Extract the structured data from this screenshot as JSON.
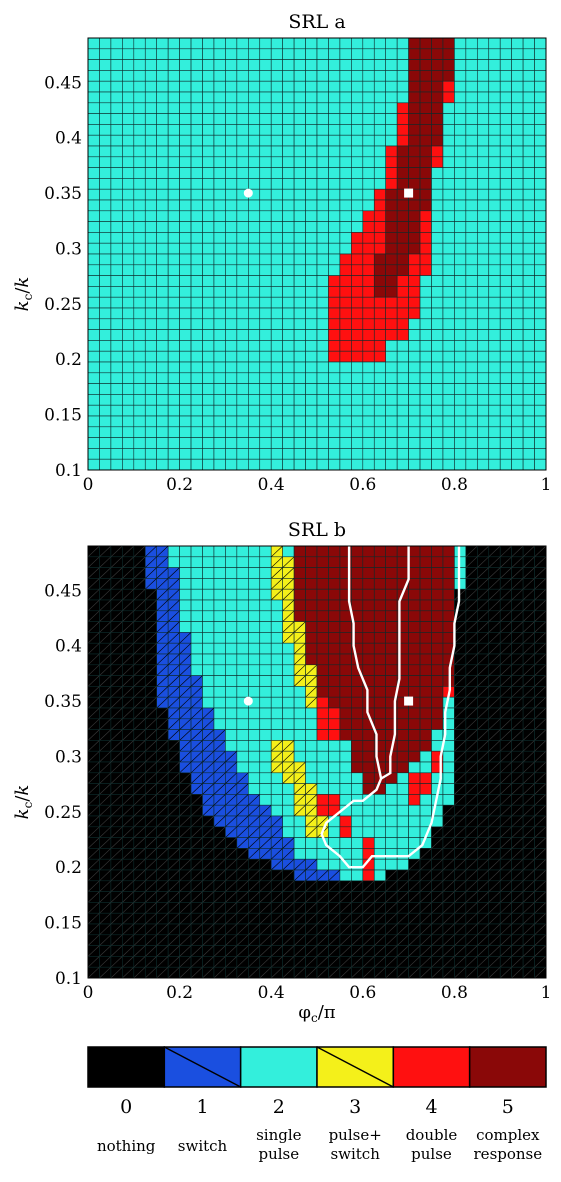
{
  "colors": {
    "0": "#000000",
    "1": "#1a4fe0",
    "2": "#33efdc",
    "3": "#f4f01a",
    "4": "#ff1010",
    "5": "#8a0808",
    "grid_dark": "#0d2b2b",
    "marker": "#ffffff"
  },
  "chart_data": [
    {
      "type": "heatmap",
      "title": "SRL a",
      "xlabel": "",
      "ylabel": "k_c/k",
      "xlim": [
        0,
        1
      ],
      "ylim": [
        0.1,
        0.49
      ],
      "xticks": [
        "0",
        "0.2",
        "0.4",
        "0.6",
        "0.8",
        "1"
      ],
      "yticks": [
        "0.1",
        "0.15",
        "0.2",
        "0.25",
        "0.3",
        "0.35",
        "0.4",
        "0.45"
      ],
      "grid_cols": 40,
      "grid_rows": 40,
      "default_class": 2,
      "regions": [
        {
          "class": 4,
          "ranges": [
            [
              0.205,
              0.53,
              0.66
            ],
            [
              0.225,
              0.52,
              0.7
            ],
            [
              0.245,
              0.52,
              0.72
            ],
            [
              0.265,
              0.53,
              0.73
            ],
            [
              0.285,
              0.55,
              0.74
            ],
            [
              0.305,
              0.57,
              0.75
            ],
            [
              0.325,
              0.6,
              0.75
            ],
            [
              0.345,
              0.62,
              0.76
            ],
            [
              0.365,
              0.64,
              0.76
            ],
            [
              0.385,
              0.66,
              0.77
            ],
            [
              0.405,
              0.67,
              0.78
            ],
            [
              0.425,
              0.68,
              0.78
            ],
            [
              0.445,
              0.69,
              0.79
            ],
            [
              0.465,
              0.69,
              0.8
            ],
            [
              0.485,
              0.69,
              0.8
            ]
          ]
        },
        {
          "class": 5,
          "ranges": [
            [
              0.265,
              0.62,
              0.68
            ],
            [
              0.285,
              0.63,
              0.7
            ],
            [
              0.305,
              0.64,
              0.72
            ],
            [
              0.325,
              0.65,
              0.73
            ],
            [
              0.345,
              0.66,
              0.74
            ],
            [
              0.365,
              0.67,
              0.75
            ],
            [
              0.385,
              0.68,
              0.76
            ],
            [
              0.405,
              0.69,
              0.77
            ],
            [
              0.425,
              0.69,
              0.77
            ],
            [
              0.445,
              0.7,
              0.78
            ],
            [
              0.465,
              0.7,
              0.79
            ],
            [
              0.485,
              0.7,
              0.79
            ]
          ]
        }
      ],
      "markers": [
        {
          "shape": "circle",
          "x": 0.35,
          "y": 0.35
        },
        {
          "shape": "square",
          "x": 0.7,
          "y": 0.35
        }
      ]
    },
    {
      "type": "heatmap",
      "title": "SRL b",
      "xlabel": "φ_c/π",
      "ylabel": "k_c/k",
      "xlim": [
        0,
        1
      ],
      "ylim": [
        0.1,
        0.49
      ],
      "xticks": [
        "0",
        "0.2",
        "0.4",
        "0.6",
        "0.8",
        "1"
      ],
      "yticks": [
        "0.1",
        "0.15",
        "0.2",
        "0.25",
        "0.3",
        "0.35",
        "0.4",
        "0.45"
      ],
      "grid_cols": 40,
      "grid_rows": 40,
      "default_class": 0,
      "regions": [
        {
          "class": 1,
          "ranges": [
            [
              0.195,
              0.45,
              0.65
            ],
            [
              0.205,
              0.4,
              0.7
            ],
            [
              0.215,
              0.36,
              0.72
            ],
            [
              0.225,
              0.33,
              0.74
            ],
            [
              0.235,
              0.3,
              0.76
            ],
            [
              0.245,
              0.28,
              0.77
            ],
            [
              0.255,
              0.26,
              0.78
            ],
            [
              0.265,
              0.25,
              0.79
            ],
            [
              0.275,
              0.23,
              0.79
            ],
            [
              0.285,
              0.22,
              0.8
            ],
            [
              0.295,
              0.21,
              0.8
            ],
            [
              0.305,
              0.2,
              0.8
            ],
            [
              0.315,
              0.19,
              0.8
            ],
            [
              0.325,
              0.18,
              0.8
            ],
            [
              0.335,
              0.17,
              0.8
            ],
            [
              0.345,
              0.17,
              0.8
            ],
            [
              0.355,
              0.16,
              0.8
            ],
            [
              0.365,
              0.16,
              0.8
            ],
            [
              0.375,
              0.15,
              0.81
            ],
            [
              0.385,
              0.15,
              0.81
            ],
            [
              0.395,
              0.15,
              0.81
            ],
            [
              0.405,
              0.15,
              0.81
            ],
            [
              0.415,
              0.15,
              0.81
            ],
            [
              0.425,
              0.14,
              0.81
            ],
            [
              0.435,
              0.14,
              0.81
            ],
            [
              0.445,
              0.14,
              0.81
            ],
            [
              0.455,
              0.14,
              0.81
            ],
            [
              0.465,
              0.13,
              0.82
            ],
            [
              0.475,
              0.13,
              0.82
            ],
            [
              0.485,
              0.13,
              0.82
            ]
          ]
        },
        {
          "class": 2,
          "ranges": [
            [
              0.195,
              0.54,
              0.65
            ],
            [
              0.205,
              0.49,
              0.7
            ],
            [
              0.215,
              0.46,
              0.72
            ],
            [
              0.225,
              0.45,
              0.74
            ],
            [
              0.235,
              0.43,
              0.76
            ],
            [
              0.245,
              0.42,
              0.77
            ],
            [
              0.255,
              0.4,
              0.78
            ],
            [
              0.265,
              0.38,
              0.79
            ],
            [
              0.275,
              0.36,
              0.79
            ],
            [
              0.285,
              0.35,
              0.8
            ],
            [
              0.295,
              0.33,
              0.8
            ],
            [
              0.305,
              0.32,
              0.8
            ],
            [
              0.315,
              0.3,
              0.8
            ],
            [
              0.325,
              0.29,
              0.8
            ],
            [
              0.335,
              0.28,
              0.8
            ],
            [
              0.345,
              0.27,
              0.8
            ],
            [
              0.355,
              0.26,
              0.8
            ],
            [
              0.365,
              0.25,
              0.8
            ],
            [
              0.375,
              0.24,
              0.81
            ],
            [
              0.385,
              0.23,
              0.81
            ],
            [
              0.395,
              0.23,
              0.81
            ],
            [
              0.405,
              0.22,
              0.81
            ],
            [
              0.415,
              0.22,
              0.81
            ],
            [
              0.425,
              0.21,
              0.81
            ],
            [
              0.435,
              0.21,
              0.81
            ],
            [
              0.445,
              0.2,
              0.81
            ],
            [
              0.455,
              0.2,
              0.81
            ],
            [
              0.465,
              0.19,
              0.82
            ],
            [
              0.475,
              0.19,
              0.82
            ],
            [
              0.485,
              0.18,
              0.82
            ]
          ]
        },
        {
          "class": 3,
          "ranges": [
            [
              0.235,
              0.47,
              0.52
            ],
            [
              0.245,
              0.47,
              0.53
            ],
            [
              0.255,
              0.46,
              0.53
            ],
            [
              0.265,
              0.45,
              0.5
            ],
            [
              0.275,
              0.44,
              0.48
            ],
            [
              0.285,
              0.42,
              0.47
            ],
            [
              0.295,
              0.41,
              0.46
            ],
            [
              0.305,
              0.39,
              0.45
            ],
            [
              0.355,
              0.48,
              0.52
            ],
            [
              0.365,
              0.47,
              0.51
            ],
            [
              0.375,
              0.46,
              0.5
            ],
            [
              0.385,
              0.45,
              0.49
            ],
            [
              0.395,
              0.44,
              0.48
            ],
            [
              0.405,
              0.44,
              0.48
            ],
            [
              0.415,
              0.43,
              0.47
            ],
            [
              0.425,
              0.43,
              0.47
            ],
            [
              0.435,
              0.42,
              0.46
            ],
            [
              0.445,
              0.42,
              0.46
            ],
            [
              0.455,
              0.41,
              0.45
            ],
            [
              0.465,
              0.41,
              0.45
            ],
            [
              0.475,
              0.4,
              0.44
            ],
            [
              0.485,
              0.4,
              0.43
            ]
          ]
        },
        {
          "class": 4,
          "ranges": [
            [
              0.195,
              0.6,
              0.62
            ],
            [
              0.215,
              0.59,
              0.62
            ],
            [
              0.235,
              0.55,
              0.58
            ],
            [
              0.255,
              0.51,
              0.55
            ],
            [
              0.265,
              0.69,
              0.73
            ],
            [
              0.275,
              0.71,
              0.74
            ],
            [
              0.295,
              0.74,
              0.77
            ],
            [
              0.325,
              0.5,
              0.55
            ],
            [
              0.335,
              0.51,
              0.56
            ],
            [
              0.345,
              0.51,
              0.57
            ],
            [
              0.365,
              0.78,
              0.8
            ],
            [
              0.395,
              0.79,
              0.81
            ],
            [
              0.425,
              0.8,
              0.81
            ]
          ]
        },
        {
          "class": 5,
          "ranges": [
            [
              0.275,
              0.6,
              0.66
            ],
            [
              0.285,
              0.59,
              0.67
            ],
            [
              0.295,
              0.58,
              0.7
            ],
            [
              0.305,
              0.58,
              0.72
            ],
            [
              0.315,
              0.57,
              0.74
            ],
            [
              0.325,
              0.55,
              0.76
            ],
            [
              0.335,
              0.56,
              0.77
            ],
            [
              0.345,
              0.57,
              0.78
            ],
            [
              0.355,
              0.52,
              0.78
            ],
            [
              0.365,
              0.51,
              0.78
            ],
            [
              0.375,
              0.5,
              0.79
            ],
            [
              0.385,
              0.49,
              0.79
            ],
            [
              0.395,
              0.48,
              0.79
            ],
            [
              0.405,
              0.48,
              0.79
            ],
            [
              0.415,
              0.47,
              0.8
            ],
            [
              0.425,
              0.47,
              0.8
            ],
            [
              0.435,
              0.46,
              0.8
            ],
            [
              0.445,
              0.46,
              0.8
            ],
            [
              0.455,
              0.45,
              0.8
            ],
            [
              0.465,
              0.45,
              0.81
            ],
            [
              0.475,
              0.44,
              0.81
            ],
            [
              0.485,
              0.44,
              0.81
            ]
          ]
        }
      ],
      "contours": [
        [
          [
            0.7,
            0.49
          ],
          [
            0.7,
            0.46
          ],
          [
            0.68,
            0.44
          ],
          [
            0.68,
            0.37
          ],
          [
            0.67,
            0.35
          ],
          [
            0.67,
            0.32
          ],
          [
            0.66,
            0.3
          ],
          [
            0.66,
            0.285
          ],
          [
            0.64,
            0.28
          ],
          [
            0.63,
            0.3
          ],
          [
            0.63,
            0.32
          ],
          [
            0.61,
            0.34
          ],
          [
            0.61,
            0.36
          ],
          [
            0.59,
            0.38
          ],
          [
            0.58,
            0.4
          ],
          [
            0.58,
            0.42
          ],
          [
            0.57,
            0.44
          ],
          [
            0.57,
            0.49
          ]
        ],
        [
          [
            0.81,
            0.49
          ],
          [
            0.81,
            0.44
          ],
          [
            0.8,
            0.42
          ],
          [
            0.8,
            0.4
          ],
          [
            0.79,
            0.38
          ],
          [
            0.79,
            0.36
          ],
          [
            0.78,
            0.34
          ],
          [
            0.78,
            0.32
          ],
          [
            0.77,
            0.3
          ],
          [
            0.77,
            0.28
          ],
          [
            0.76,
            0.26
          ],
          [
            0.75,
            0.24
          ],
          [
            0.73,
            0.22
          ],
          [
            0.7,
            0.21
          ],
          [
            0.62,
            0.21
          ],
          [
            0.6,
            0.2
          ],
          [
            0.57,
            0.2
          ],
          [
            0.55,
            0.21
          ],
          [
            0.52,
            0.22
          ],
          [
            0.51,
            0.23
          ],
          [
            0.52,
            0.24
          ],
          [
            0.55,
            0.25
          ],
          [
            0.58,
            0.26
          ],
          [
            0.6,
            0.26
          ],
          [
            0.63,
            0.27
          ],
          [
            0.64,
            0.28
          ]
        ]
      ],
      "markers": [
        {
          "shape": "circle",
          "x": 0.35,
          "y": 0.35
        },
        {
          "shape": "square",
          "x": 0.7,
          "y": 0.35
        }
      ]
    }
  ],
  "legend": {
    "items": [
      {
        "class": 0,
        "value": "0",
        "caption_line1": "nothing",
        "caption_line2": "",
        "hatched": false
      },
      {
        "class": 1,
        "value": "1",
        "caption_line1": "switch",
        "caption_line2": "",
        "hatched": true
      },
      {
        "class": 2,
        "value": "2",
        "caption_line1": "single",
        "caption_line2": "pulse",
        "hatched": false
      },
      {
        "class": 3,
        "value": "3",
        "caption_line1": "pulse+",
        "caption_line2": "switch",
        "hatched": true
      },
      {
        "class": 4,
        "value": "4",
        "caption_line1": "double",
        "caption_line2": "pulse",
        "hatched": false
      },
      {
        "class": 5,
        "value": "5",
        "caption_line1": "complex",
        "caption_line2": "response",
        "hatched": false
      }
    ]
  }
}
